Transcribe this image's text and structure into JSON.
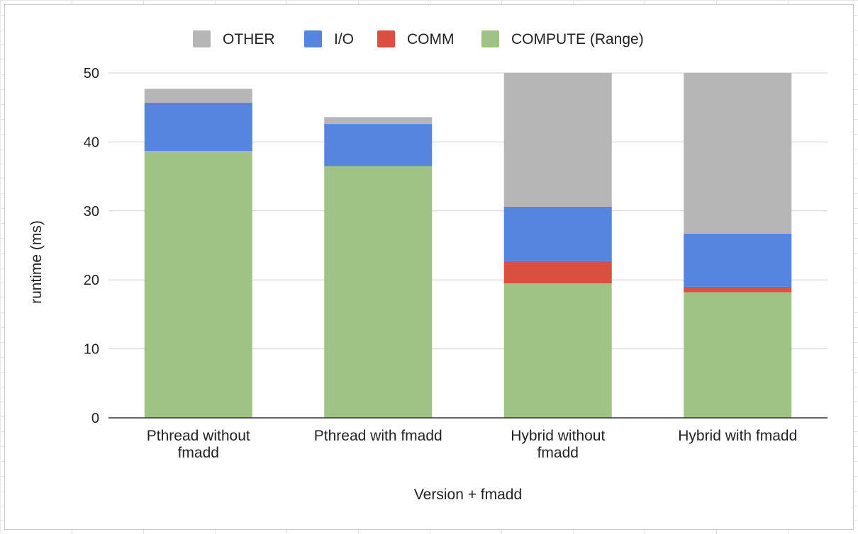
{
  "chart_data": {
    "type": "bar",
    "stacked": true,
    "categories": [
      [
        "Pthread without",
        "fmadd"
      ],
      [
        "Pthread with fmadd"
      ],
      [
        "Hybrid without",
        "fmadd"
      ],
      [
        "Hybrid with fmadd"
      ]
    ],
    "series": [
      {
        "name": "COMPUTE (Range)",
        "color": "#9ec384",
        "values": [
          38.7,
          36.5,
          19.5,
          18.2
        ]
      },
      {
        "name": "COMM",
        "color": "#d95040",
        "values": [
          0,
          0,
          3.2,
          0.8
        ]
      },
      {
        "name": "I/O",
        "color": "#5685e0",
        "values": [
          7.0,
          6.1,
          7.9,
          7.7
        ]
      },
      {
        "name": "OTHER",
        "color": "#b6b6b6",
        "values": [
          2.0,
          1.0,
          19.4,
          23.3
        ]
      }
    ],
    "legend_order": [
      "OTHER",
      "I/O",
      "COMM",
      "COMPUTE (Range)"
    ],
    "legend_position": "top",
    "xlabel": "Version + fmadd",
    "ylabel": "runtime (ms)",
    "ylim": [
      0,
      50
    ],
    "yticks": [
      0,
      10,
      20,
      30,
      40,
      50
    ],
    "grid": true
  }
}
